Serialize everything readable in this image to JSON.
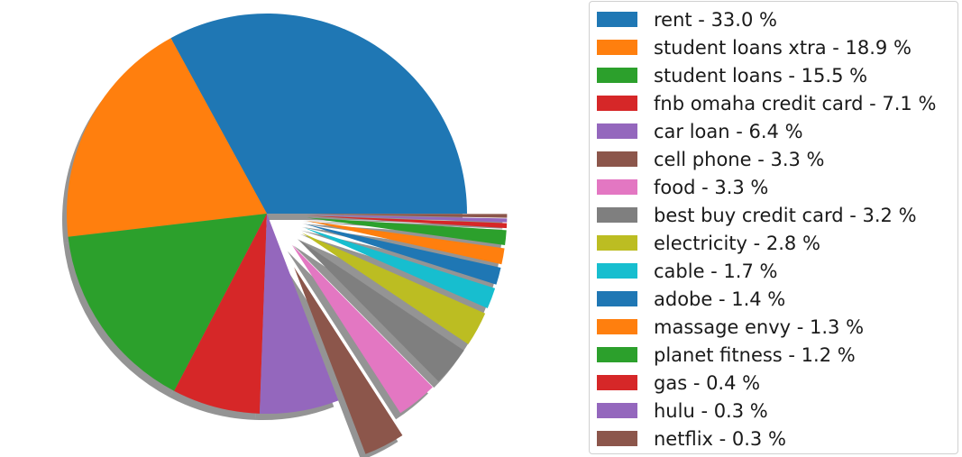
{
  "chart_data": {
    "type": "pie",
    "slices": [
      {
        "label": "rent",
        "legend": "rent - 33.0 %",
        "value": 33.0,
        "color": "#1f77b4",
        "explode": 0
      },
      {
        "label": "student loans xtra",
        "legend": "student loans xtra - 18.9 %",
        "value": 18.9,
        "color": "#ff7f0e",
        "explode": 0
      },
      {
        "label": "student loans",
        "legend": "student loans - 15.5 %",
        "value": 15.5,
        "color": "#2ca02c",
        "explode": 0
      },
      {
        "label": "fnb omaha credit card",
        "legend": "fnb omaha credit card - 7.1 %",
        "value": 7.1,
        "color": "#d62728",
        "explode": 0
      },
      {
        "label": "car loan",
        "legend": "car loan - 6.4 %",
        "value": 6.4,
        "color": "#9467bd",
        "explode": 0
      },
      {
        "label": "cell phone",
        "legend": "cell phone - 3.3 %",
        "value": 3.3,
        "color": "#8c564b",
        "explode": 0.3
      },
      {
        "label": "food",
        "legend": "food - 3.3 %",
        "value": 3.3,
        "color": "#e377c2",
        "explode": 0.2
      },
      {
        "label": "best buy credit card",
        "legend": "best buy credit card - 3.2 %",
        "value": 3.2,
        "color": "#7f7f7f",
        "explode": 0.2
      },
      {
        "label": "electricity",
        "legend": "electricity - 2.8 %",
        "value": 2.8,
        "color": "#bcbd22",
        "explode": 0.2
      },
      {
        "label": "cable",
        "legend": "cable - 1.7 %",
        "value": 1.7,
        "color": "#17becf",
        "explode": 0.2
      },
      {
        "label": "adobe",
        "legend": "adobe - 1.4 %",
        "value": 1.4,
        "color": "#1f77b4",
        "explode": 0.2
      },
      {
        "label": "massage envy",
        "legend": "massage envy - 1.3 %",
        "value": 1.3,
        "color": "#ff7f0e",
        "explode": 0.2
      },
      {
        "label": "planet fitness",
        "legend": "planet fitness - 1.2 %",
        "value": 1.2,
        "color": "#2ca02c",
        "explode": 0.2
      },
      {
        "label": "gas",
        "legend": "gas - 0.4 %",
        "value": 0.4,
        "color": "#d62728",
        "explode": 0.2
      },
      {
        "label": "hulu",
        "legend": "hulu - 0.3 %",
        "value": 0.3,
        "color": "#9467bd",
        "explode": 0.2
      },
      {
        "label": "netflix",
        "legend": "netflix - 0.3 %",
        "value": 0.3,
        "color": "#8c564b",
        "explode": 0.2
      }
    ],
    "start_angle_deg": 0,
    "direction": "counterclockwise",
    "shadow": true,
    "title": "",
    "legend_placement": "right"
  }
}
